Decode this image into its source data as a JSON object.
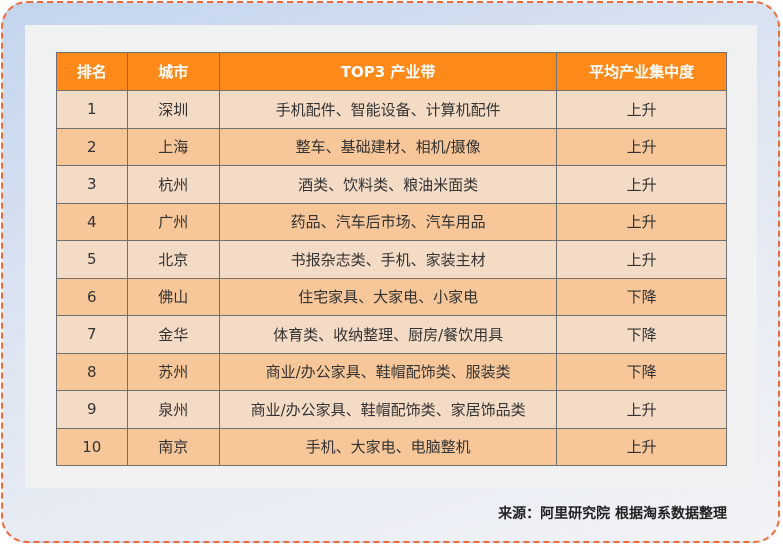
{
  "table": {
    "headers": [
      "排名",
      "城市",
      "TOP3 产业带",
      "平均产业集中度"
    ],
    "rows": [
      [
        "1",
        "深圳",
        "手机配件、智能设备、计算机配件",
        "上升"
      ],
      [
        "2",
        "上海",
        "整车、基础建材、相机/摄像",
        "上升"
      ],
      [
        "3",
        "杭州",
        "酒类、饮料类、粮油米面类",
        "上升"
      ],
      [
        "4",
        "广州",
        "药品、汽车后市场、汽车用品",
        "上升"
      ],
      [
        "5",
        "北京",
        "书报杂志类、手机、家装主材",
        "上升"
      ],
      [
        "6",
        "佛山",
        "住宅家具、大家电、小家电",
        "下降"
      ],
      [
        "7",
        "金华",
        "体育类、收纳整理、厨房/餐饮用具",
        "下降"
      ],
      [
        "8",
        "苏州",
        "商业/办公家具、鞋帽配饰类、服装类",
        "下降"
      ],
      [
        "9",
        "泉州",
        "商业/办公家具、鞋帽配饰类、家居饰品类",
        "上升"
      ],
      [
        "10",
        "南京",
        "手机、大家电、电脑整机",
        "上升"
      ]
    ]
  },
  "source": "来源：阿里研究院 根据淘系数据整理",
  "colors": {
    "header": "#ff8a1a",
    "row_light": "#f4dbc6",
    "row_dark": "#f7c699",
    "border": "#f26a3a"
  }
}
